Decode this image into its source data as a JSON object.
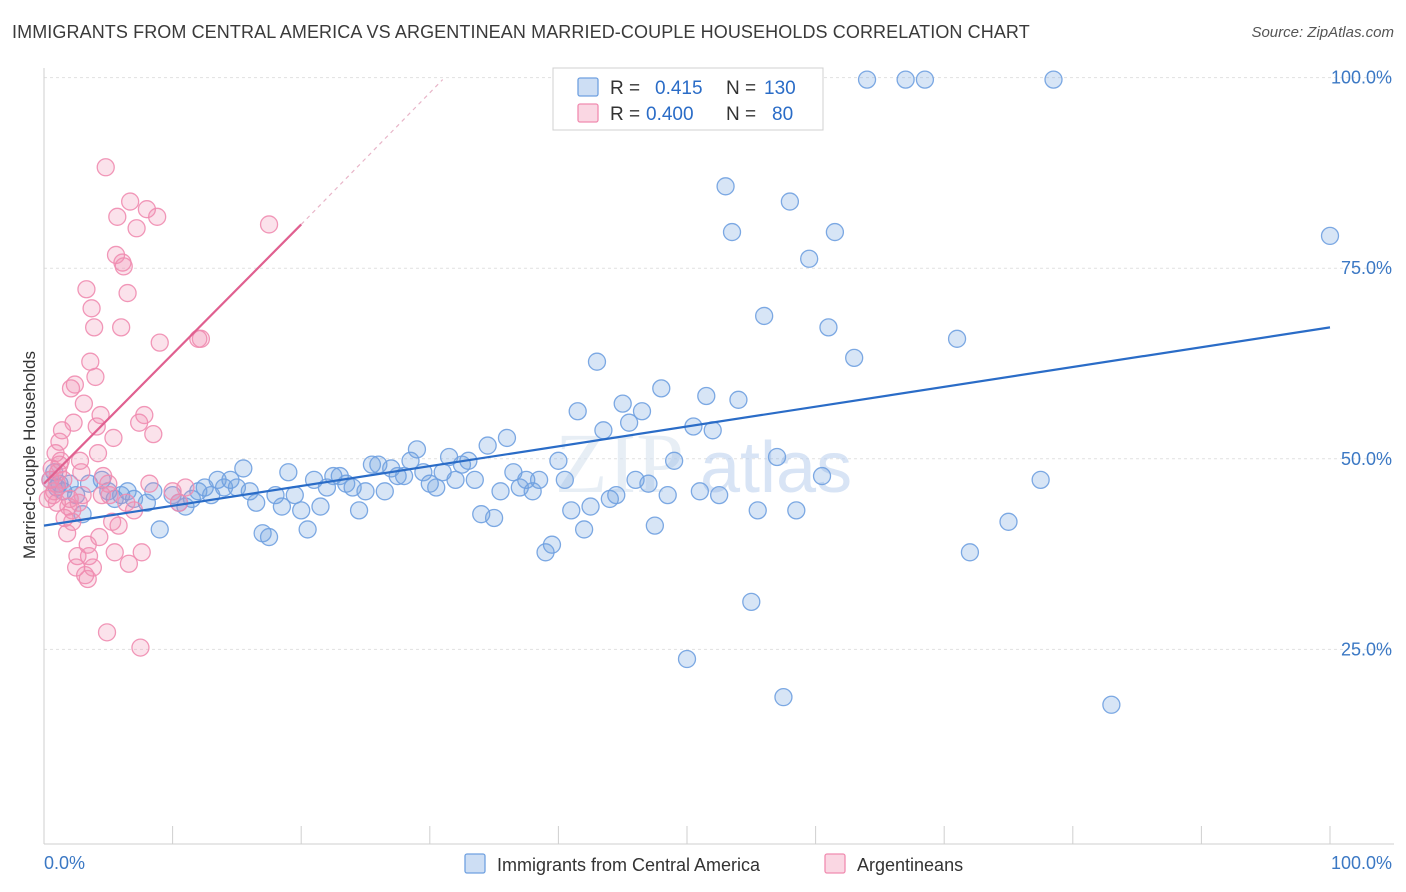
{
  "header": {
    "title": "IMMIGRANTS FROM CENTRAL AMERICA VS ARGENTINEAN MARRIED-COUPLE HOUSEHOLDS CORRELATION CHART",
    "source": "Source: ZipAtlas.com"
  },
  "watermark": {
    "zip": "ZIP",
    "atlas": "atlas"
  },
  "legend_top": {
    "r_label": "R =",
    "n_label": "N =",
    "rows": [
      {
        "r": "0.415",
        "n": "130",
        "color": "#6fa0e0"
      },
      {
        "r": "0.400",
        "n": "80",
        "color": "#f08cb0"
      }
    ]
  },
  "chart_data": {
    "type": "scatter",
    "xlabel": "",
    "ylabel": "Married-couple Households",
    "xlim": [
      0,
      100
    ],
    "ylim": [
      0,
      105
    ],
    "x_tick_labels": [
      "0.0%",
      "100.0%"
    ],
    "y_ticks": [
      25,
      50,
      75,
      100
    ],
    "y_tick_labels": [
      "25.0%",
      "50.0%",
      "75.0%",
      "100.0%"
    ],
    "grid": true,
    "legend_position": "bottom",
    "series": [
      {
        "name": "Immigrants from Central America",
        "color": "#6fa0e0",
        "line_color": "#2a6cc7",
        "trend": {
          "x1": 0,
          "y1": 41.5,
          "x2": 100,
          "y2": 67.5
        },
        "points": [
          [
            0.5,
            47.5
          ],
          [
            0.8,
            48.5
          ],
          [
            1.0,
            46.5
          ],
          [
            1.2,
            47.0
          ],
          [
            1.5,
            46.0
          ],
          [
            2.0,
            47.0
          ],
          [
            2.5,
            45.5
          ],
          [
            3.0,
            43.0
          ],
          [
            3.5,
            47.0
          ],
          [
            4.5,
            47.5
          ],
          [
            5.0,
            46.0
          ],
          [
            5.5,
            45.0
          ],
          [
            6.0,
            45.5
          ],
          [
            6.5,
            46.0
          ],
          [
            7.0,
            45.0
          ],
          [
            8.0,
            44.5
          ],
          [
            8.5,
            46.0
          ],
          [
            9.0,
            41.0
          ],
          [
            10.0,
            45.5
          ],
          [
            10.5,
            44.5
          ],
          [
            11.0,
            44.0
          ],
          [
            11.5,
            45.0
          ],
          [
            12.0,
            46.0
          ],
          [
            12.5,
            46.5
          ],
          [
            13.0,
            45.5
          ],
          [
            13.5,
            47.5
          ],
          [
            14.0,
            46.5
          ],
          [
            14.5,
            47.5
          ],
          [
            15.0,
            46.5
          ],
          [
            15.5,
            49.0
          ],
          [
            16.0,
            46.0
          ],
          [
            16.5,
            44.5
          ],
          [
            17.0,
            40.5
          ],
          [
            17.5,
            40.0
          ],
          [
            18.0,
            45.5
          ],
          [
            18.5,
            44.0
          ],
          [
            19.0,
            48.5
          ],
          [
            19.5,
            45.5
          ],
          [
            20.0,
            43.5
          ],
          [
            20.5,
            41.0
          ],
          [
            21.0,
            47.5
          ],
          [
            21.5,
            44.0
          ],
          [
            22.0,
            46.5
          ],
          [
            22.5,
            48.0
          ],
          [
            23.0,
            48.0
          ],
          [
            23.5,
            47.0
          ],
          [
            24.0,
            46.5
          ],
          [
            24.5,
            43.5
          ],
          [
            25.0,
            46.0
          ],
          [
            25.5,
            49.5
          ],
          [
            26.0,
            49.5
          ],
          [
            26.5,
            46.0
          ],
          [
            27.0,
            49.0
          ],
          [
            27.5,
            48.0
          ],
          [
            28.0,
            48.0
          ],
          [
            28.5,
            50.0
          ],
          [
            29.0,
            51.5
          ],
          [
            29.5,
            48.5
          ],
          [
            30.0,
            47.0
          ],
          [
            30.5,
            46.5
          ],
          [
            31.0,
            48.5
          ],
          [
            31.5,
            50.5
          ],
          [
            32.0,
            47.5
          ],
          [
            32.5,
            49.5
          ],
          [
            33.0,
            50.0
          ],
          [
            33.5,
            47.5
          ],
          [
            34.0,
            43.0
          ],
          [
            34.5,
            52.0
          ],
          [
            35.0,
            42.5
          ],
          [
            35.5,
            46.0
          ],
          [
            36.0,
            53.0
          ],
          [
            36.5,
            48.5
          ],
          [
            37.0,
            46.5
          ],
          [
            37.5,
            47.5
          ],
          [
            38.0,
            46.0
          ],
          [
            38.5,
            47.5
          ],
          [
            39.0,
            38.0
          ],
          [
            39.5,
            39.0
          ],
          [
            40.0,
            50.0
          ],
          [
            40.5,
            47.5
          ],
          [
            41.0,
            43.5
          ],
          [
            41.5,
            56.5
          ],
          [
            42.0,
            41.0
          ],
          [
            42.5,
            44.0
          ],
          [
            43.0,
            63.0
          ],
          [
            43.5,
            54.0
          ],
          [
            44.0,
            45.0
          ],
          [
            44.5,
            45.5
          ],
          [
            45.0,
            57.5
          ],
          [
            45.5,
            55.0
          ],
          [
            46.0,
            47.5
          ],
          [
            46.5,
            56.5
          ],
          [
            47.0,
            47.0
          ],
          [
            47.5,
            41.5
          ],
          [
            48.0,
            59.5
          ],
          [
            48.5,
            45.5
          ],
          [
            49.0,
            50.0
          ],
          [
            50.0,
            24.0
          ],
          [
            50.5,
            54.5
          ],
          [
            51.0,
            46.0
          ],
          [
            51.5,
            58.5
          ],
          [
            52.0,
            54.0
          ],
          [
            52.5,
            45.5
          ],
          [
            53.0,
            86.0
          ],
          [
            53.5,
            80.0
          ],
          [
            54.0,
            58.0
          ],
          [
            55.0,
            31.5
          ],
          [
            55.5,
            43.5
          ],
          [
            56.0,
            69.0
          ],
          [
            57.0,
            50.5
          ],
          [
            57.5,
            19.0
          ],
          [
            58.0,
            84.0
          ],
          [
            58.5,
            43.5
          ],
          [
            59.5,
            76.5
          ],
          [
            60.5,
            48.0
          ],
          [
            61.0,
            67.5
          ],
          [
            61.5,
            80.0
          ],
          [
            63.0,
            63.5
          ],
          [
            64.0,
            100.0
          ],
          [
            67.0,
            100.0
          ],
          [
            68.5,
            100.0
          ],
          [
            71.0,
            66.0
          ],
          [
            72.0,
            38.0
          ],
          [
            75.0,
            42.0
          ],
          [
            77.5,
            47.5
          ],
          [
            78.5,
            100.0
          ],
          [
            83.0,
            18.0
          ],
          [
            100.0,
            79.5
          ]
        ]
      },
      {
        "name": "Argentineans",
        "color": "#f08cb0",
        "line_color": "#e06090",
        "trend": {
          "x1": 0,
          "y1": 47.0,
          "x2": 20,
          "y2": 81.0,
          "dash_x2": 31,
          "dash_y2": 100
        },
        "points": [
          [
            0.3,
            45.0
          ],
          [
            0.5,
            47.5
          ],
          [
            0.6,
            49.0
          ],
          [
            0.8,
            46.0
          ],
          [
            0.9,
            51.0
          ],
          [
            1.0,
            44.5
          ],
          [
            1.1,
            48.5
          ],
          [
            1.2,
            52.5
          ],
          [
            1.3,
            50.0
          ],
          [
            1.4,
            54.0
          ],
          [
            1.5,
            47.5
          ],
          [
            1.6,
            42.5
          ],
          [
            1.8,
            40.5
          ],
          [
            2.0,
            45.0
          ],
          [
            2.1,
            59.5
          ],
          [
            2.2,
            43.5
          ],
          [
            2.3,
            55.0
          ],
          [
            2.4,
            60.0
          ],
          [
            2.5,
            36.0
          ],
          [
            2.6,
            37.5
          ],
          [
            2.7,
            44.5
          ],
          [
            2.8,
            50.0
          ],
          [
            3.0,
            45.5
          ],
          [
            3.1,
            57.5
          ],
          [
            3.2,
            35.0
          ],
          [
            3.3,
            72.5
          ],
          [
            3.4,
            39.0
          ],
          [
            3.5,
            37.5
          ],
          [
            3.6,
            63.0
          ],
          [
            3.7,
            70.0
          ],
          [
            3.8,
            36.0
          ],
          [
            3.9,
            67.5
          ],
          [
            4.0,
            61.0
          ],
          [
            4.1,
            54.5
          ],
          [
            4.2,
            51.0
          ],
          [
            4.4,
            56.0
          ],
          [
            4.5,
            45.5
          ],
          [
            4.6,
            48.0
          ],
          [
            4.8,
            88.5
          ],
          [
            4.9,
            27.5
          ],
          [
            5.0,
            47.0
          ],
          [
            5.1,
            45.5
          ],
          [
            5.3,
            42.0
          ],
          [
            5.5,
            38.0
          ],
          [
            5.6,
            77.0
          ],
          [
            5.7,
            82.0
          ],
          [
            6.0,
            67.5
          ],
          [
            6.2,
            75.5
          ],
          [
            6.4,
            44.5
          ],
          [
            6.6,
            36.5
          ],
          [
            6.7,
            84.0
          ],
          [
            7.0,
            43.5
          ],
          [
            7.2,
            80.5
          ],
          [
            7.4,
            55.0
          ],
          [
            7.5,
            25.5
          ],
          [
            7.6,
            38.0
          ],
          [
            7.8,
            56.0
          ],
          [
            8.0,
            83.0
          ],
          [
            8.2,
            47.0
          ],
          [
            8.5,
            53.5
          ],
          [
            8.8,
            82.0
          ],
          [
            9.0,
            65.5
          ],
          [
            10.0,
            46.0
          ],
          [
            10.5,
            44.5
          ],
          [
            11.0,
            46.5
          ],
          [
            12.0,
            66.0
          ],
          [
            12.2,
            66.0
          ],
          [
            17.5,
            81.0
          ],
          [
            1.0,
            47.0
          ],
          [
            1.2,
            49.5
          ],
          [
            0.7,
            45.5
          ],
          [
            2.9,
            48.5
          ],
          [
            4.3,
            40.0
          ],
          [
            5.8,
            41.5
          ],
          [
            3.4,
            34.5
          ],
          [
            6.1,
            76.0
          ],
          [
            5.4,
            53.0
          ],
          [
            2.2,
            42.0
          ],
          [
            1.9,
            44.0
          ],
          [
            6.5,
            72.0
          ]
        ]
      }
    ]
  }
}
